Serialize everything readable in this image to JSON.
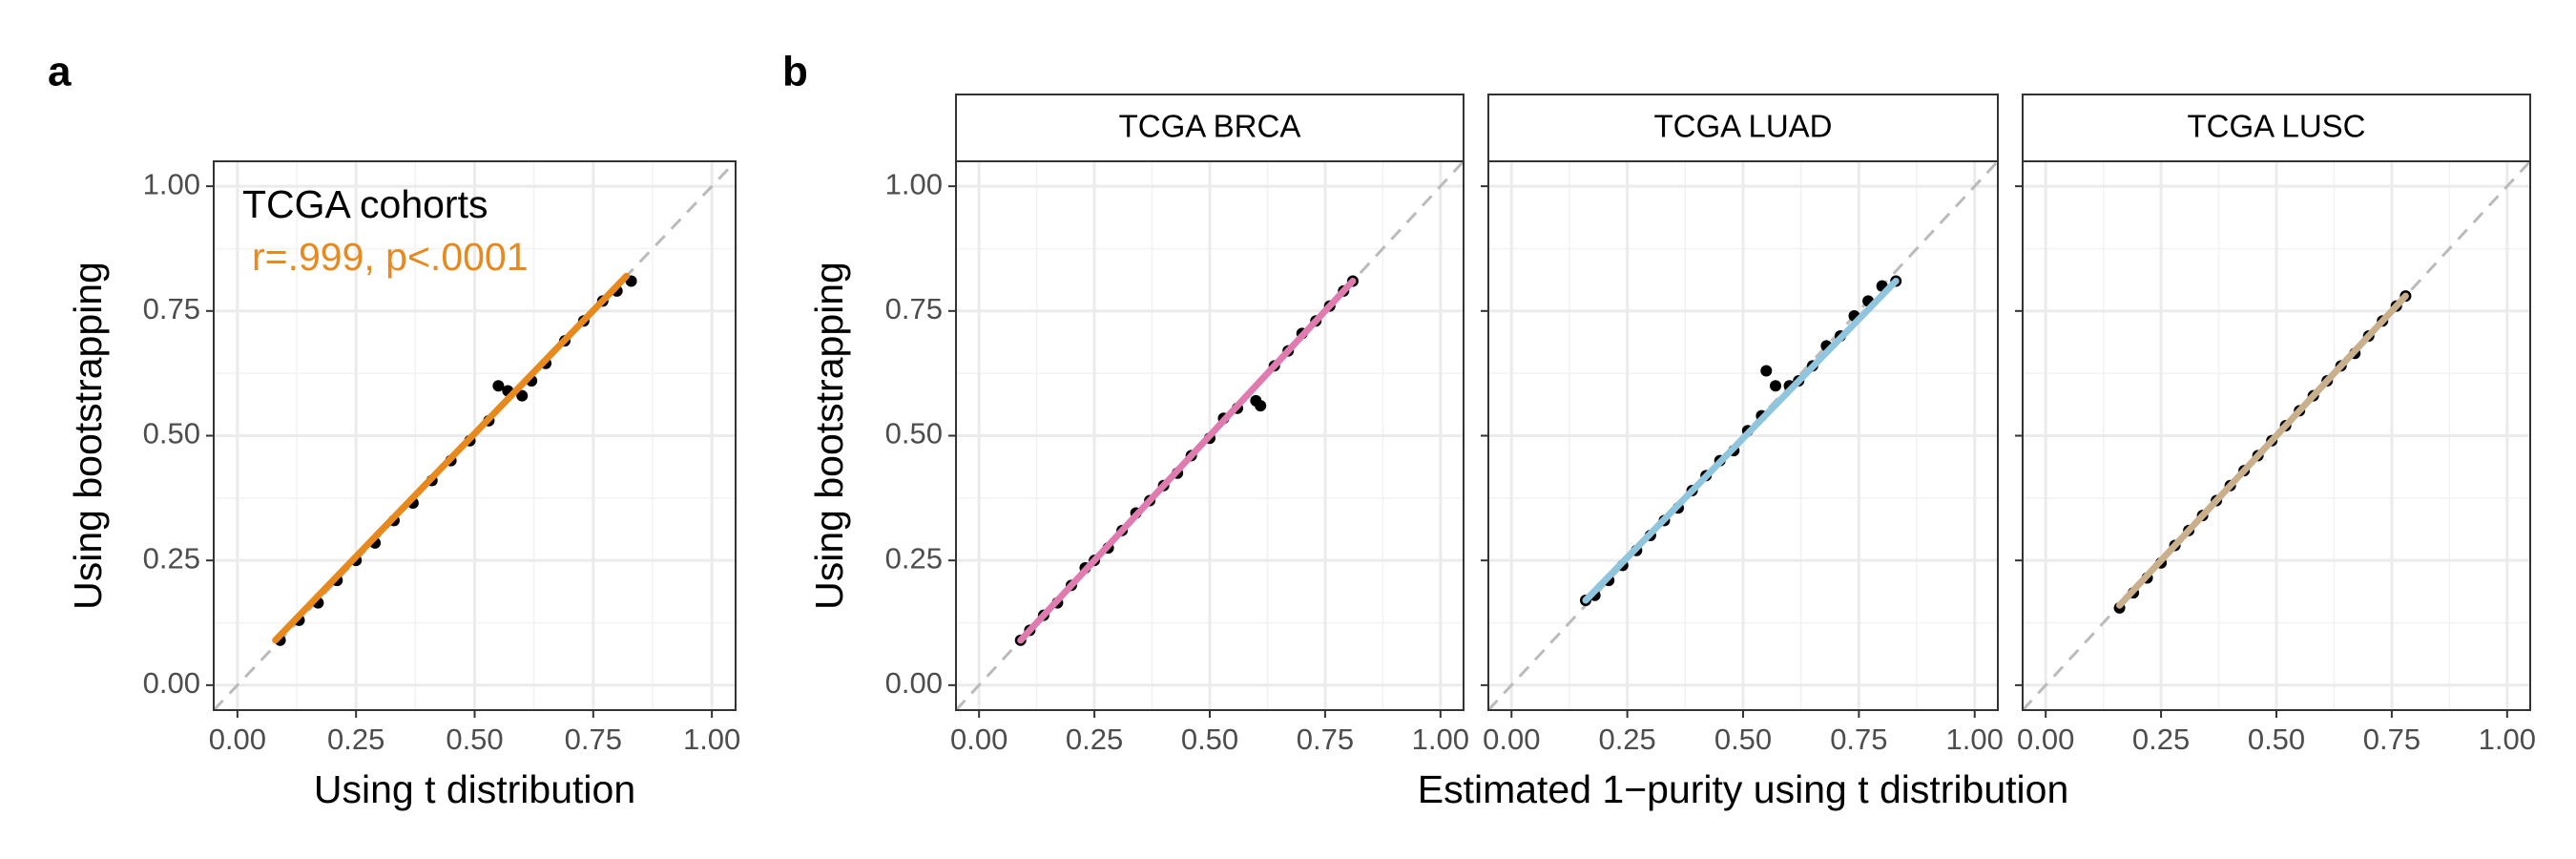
{
  "panel_labels": [
    "a",
    "b"
  ],
  "chart_data": [
    {
      "type": "scatter",
      "xlabel": "Using t distribution",
      "ylabel": "Using bootstrapping",
      "annotations": [
        {
          "text": "TCGA cohorts",
          "color": "#000000"
        },
        {
          "text": "r=.999, p<.0001",
          "color": "#e8891d"
        }
      ],
      "points": {
        "color": "#000000",
        "x": [
          0.09,
          0.13,
          0.17,
          0.21,
          0.25,
          0.29,
          0.33,
          0.37,
          0.41,
          0.45,
          0.49,
          0.53,
          0.55,
          0.57,
          0.6,
          0.62,
          0.65,
          0.69,
          0.73,
          0.77,
          0.8,
          0.83
        ],
        "y": [
          0.09,
          0.13,
          0.165,
          0.21,
          0.25,
          0.285,
          0.33,
          0.365,
          0.41,
          0.45,
          0.49,
          0.53,
          0.6,
          0.59,
          0.58,
          0.61,
          0.645,
          0.69,
          0.73,
          0.77,
          0.79,
          0.81
        ]
      },
      "fit": {
        "color": "#e8891d",
        "x": [
          0.08,
          0.82
        ],
        "y": [
          0.09,
          0.82
        ]
      },
      "reference": {
        "color": "#bbbbbb",
        "x": [
          -0.05,
          1.05
        ],
        "y": [
          -0.05,
          1.05
        ]
      },
      "xlim": [
        -0.05,
        1.05
      ],
      "ylim": [
        -0.05,
        1.05
      ],
      "xticks": [
        {
          "value": 0,
          "label": "0.00"
        },
        {
          "value": 0.25,
          "label": "0.25"
        },
        {
          "value": 0.5,
          "label": "0.50"
        },
        {
          "value": 0.75,
          "label": "0.75"
        },
        {
          "value": 1,
          "label": "1.00"
        }
      ],
      "yticks": [
        {
          "value": 0,
          "label": "0.00"
        },
        {
          "value": 0.25,
          "label": "0.25"
        },
        {
          "value": 0.5,
          "label": "0.50"
        },
        {
          "value": 0.75,
          "label": "0.75"
        },
        {
          "value": 1,
          "label": "1.00"
        }
      ],
      "minor_grid": [
        0.125,
        0.375,
        0.625,
        0.875
      ],
      "grid": true
    },
    {
      "type": "scatter",
      "title": "TCGA BRCA",
      "ylabel": "Using bootstrapping",
      "points": {
        "color": "#000000",
        "x": [
          0.09,
          0.11,
          0.14,
          0.17,
          0.2,
          0.23,
          0.25,
          0.28,
          0.31,
          0.34,
          0.37,
          0.4,
          0.43,
          0.46,
          0.5,
          0.53,
          0.56,
          0.6,
          0.61,
          0.64,
          0.67,
          0.7,
          0.73,
          0.76,
          0.79,
          0.81
        ],
        "y": [
          0.09,
          0.11,
          0.14,
          0.165,
          0.2,
          0.235,
          0.25,
          0.275,
          0.31,
          0.345,
          0.37,
          0.4,
          0.425,
          0.46,
          0.495,
          0.535,
          0.555,
          0.57,
          0.56,
          0.64,
          0.67,
          0.705,
          0.73,
          0.76,
          0.79,
          0.81
        ]
      },
      "fit": {
        "color": "#e07bb0",
        "x": [
          0.09,
          0.81
        ],
        "y": [
          0.09,
          0.81
        ]
      },
      "reference": {
        "color": "#bbbbbb",
        "x": [
          -0.05,
          1.05
        ],
        "y": [
          -0.05,
          1.05
        ]
      },
      "xlim": [
        -0.05,
        1.05
      ],
      "ylim": [
        -0.05,
        1.05
      ],
      "xticks": [
        {
          "value": 0,
          "label": "0.00"
        },
        {
          "value": 0.25,
          "label": "0.25"
        },
        {
          "value": 0.5,
          "label": "0.50"
        },
        {
          "value": 0.75,
          "label": "0.75"
        },
        {
          "value": 1,
          "label": "1.00"
        }
      ],
      "yticks": [
        {
          "value": 0,
          "label": "0.00"
        },
        {
          "value": 0.25,
          "label": "0.25"
        },
        {
          "value": 0.5,
          "label": "0.50"
        },
        {
          "value": 0.75,
          "label": "0.75"
        },
        {
          "value": 1,
          "label": "1.00"
        }
      ],
      "minor_grid": [
        0.125,
        0.375,
        0.625,
        0.875
      ],
      "grid": true
    },
    {
      "type": "scatter",
      "title": "TCGA LUAD",
      "xlabel": "Estimated 1−purity using t distribution",
      "points": {
        "color": "#000000",
        "x": [
          0.16,
          0.18,
          0.21,
          0.24,
          0.27,
          0.3,
          0.33,
          0.36,
          0.39,
          0.42,
          0.45,
          0.48,
          0.51,
          0.54,
          0.55,
          0.57,
          0.6,
          0.62,
          0.65,
          0.68,
          0.71,
          0.74,
          0.77,
          0.8,
          0.83
        ],
        "y": [
          0.17,
          0.18,
          0.21,
          0.24,
          0.27,
          0.3,
          0.33,
          0.355,
          0.39,
          0.42,
          0.45,
          0.47,
          0.51,
          0.54,
          0.63,
          0.6,
          0.6,
          0.61,
          0.64,
          0.68,
          0.7,
          0.74,
          0.77,
          0.8,
          0.81
        ]
      },
      "fit": {
        "color": "#8fc6dd",
        "x": [
          0.16,
          0.83
        ],
        "y": [
          0.17,
          0.81
        ]
      },
      "reference": {
        "color": "#bbbbbb",
        "x": [
          -0.05,
          1.05
        ],
        "y": [
          -0.05,
          1.05
        ]
      },
      "xlim": [
        -0.05,
        1.05
      ],
      "ylim": [
        -0.05,
        1.05
      ],
      "xticks": [
        {
          "value": 0,
          "label": "0.00"
        },
        {
          "value": 0.25,
          "label": "0.25"
        },
        {
          "value": 0.5,
          "label": "0.50"
        },
        {
          "value": 0.75,
          "label": "0.75"
        },
        {
          "value": 1,
          "label": "1.00"
        }
      ],
      "yticks": [
        0,
        0.25,
        0.5,
        0.75,
        1
      ],
      "minor_grid": [
        0.125,
        0.375,
        0.625,
        0.875
      ],
      "grid": true
    },
    {
      "type": "scatter",
      "title": "TCGA LUSC",
      "points": {
        "color": "#000000",
        "x": [
          0.16,
          0.19,
          0.22,
          0.25,
          0.28,
          0.31,
          0.34,
          0.37,
          0.4,
          0.43,
          0.46,
          0.49,
          0.52,
          0.55,
          0.58,
          0.61,
          0.64,
          0.67,
          0.7,
          0.73,
          0.76,
          0.78
        ],
        "y": [
          0.155,
          0.185,
          0.215,
          0.245,
          0.28,
          0.31,
          0.34,
          0.37,
          0.4,
          0.43,
          0.46,
          0.49,
          0.52,
          0.55,
          0.58,
          0.61,
          0.64,
          0.665,
          0.7,
          0.73,
          0.76,
          0.78
        ]
      },
      "fit": {
        "color": "#c9af8b",
        "x": [
          0.16,
          0.78
        ],
        "y": [
          0.16,
          0.78
        ]
      },
      "reference": {
        "color": "#bbbbbb",
        "x": [
          -0.05,
          1.05
        ],
        "y": [
          -0.05,
          1.05
        ]
      },
      "xlim": [
        -0.05,
        1.05
      ],
      "ylim": [
        -0.05,
        1.05
      ],
      "xticks": [
        {
          "value": 0,
          "label": "0.00"
        },
        {
          "value": 0.25,
          "label": "0.25"
        },
        {
          "value": 0.5,
          "label": "0.50"
        },
        {
          "value": 0.75,
          "label": "0.75"
        },
        {
          "value": 1,
          "label": "1.00"
        }
      ],
      "yticks": [
        0,
        0.25,
        0.5,
        0.75,
        1
      ],
      "minor_grid": [
        0.125,
        0.375,
        0.625,
        0.875
      ],
      "grid": true
    }
  ]
}
